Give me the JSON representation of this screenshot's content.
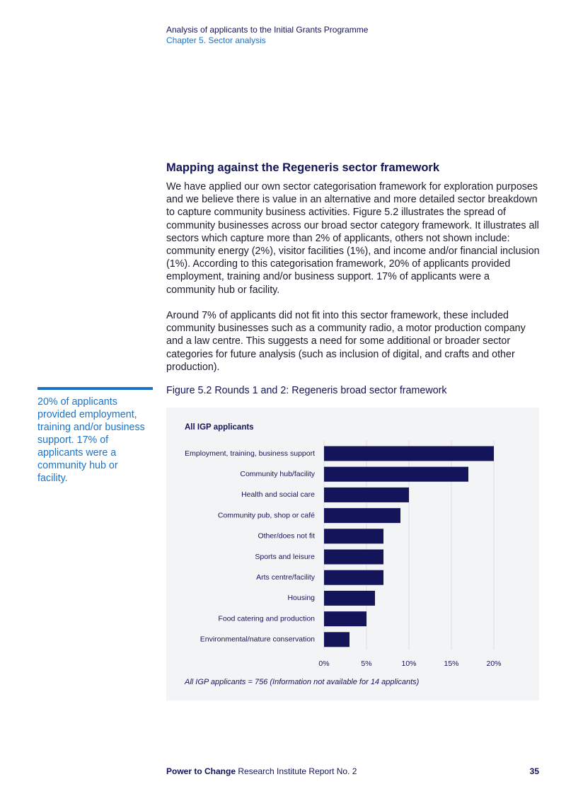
{
  "header": {
    "title": "Analysis of applicants to the Initial Grants Programme",
    "subtitle": "Chapter 5. Sector analysis"
  },
  "section": {
    "heading": "Mapping against the Regeneris sector framework",
    "paragraphs": [
      "We have applied our own sector categorisation framework for exploration purposes and we believe there is value in an alternative and more detailed sector breakdown to capture community business activities. Figure 5.2 illustrates the spread of community businesses across our broad sector category framework. It illustrates all sectors which capture more than 2% of applicants, others not shown include: community energy (2%), visitor facilities (1%), and income and/or financial inclusion (1%). According to this categorisation framework, 20% of applicants provided employment, training and/or business support. 17% of applicants were a community hub or facility.",
      "Around 7% of applicants did not fit into this sector framework, these included community businesses such as a community radio, a motor production company and a law centre. This suggests a need for some additional or broader sector categories for future analysis (such as inclusion of digital, and crafts and other production)."
    ]
  },
  "pullquote": "20% of applicants provided employment, training and/or business support. 17% of applicants were a community hub or facility.",
  "figure_caption": "Figure 5.2 Rounds 1 and 2: Regeneris broad sector framework",
  "chart_data": {
    "type": "bar",
    "title": "All IGP applicants",
    "categories": [
      "Employment, training, business support",
      "Community hub/facility",
      "Health and social care",
      "Community pub, shop or café",
      "Other/does not fit",
      "Sports and leisure",
      "Arts centre/facility",
      "Housing",
      "Food catering and production",
      "Environmental/nature conservation"
    ],
    "values": [
      20,
      17,
      10,
      9,
      7,
      7,
      7,
      6,
      5,
      3
    ],
    "color": "#14145a",
    "xlim": [
      0,
      20
    ],
    "xticks": [
      {
        "value": 0,
        "label": "0%"
      },
      {
        "value": 5,
        "label": "5%"
      },
      {
        "value": 10,
        "label": "10%"
      },
      {
        "value": 15,
        "label": "15%"
      },
      {
        "value": 20,
        "label": "20%"
      }
    ],
    "grid": true,
    "note": "All IGP applicants = 756 (Information not available for 14 applicants)"
  },
  "footer": {
    "brand": "Power to Change",
    "report": "Research Institute Report No. 2",
    "page": "35"
  }
}
